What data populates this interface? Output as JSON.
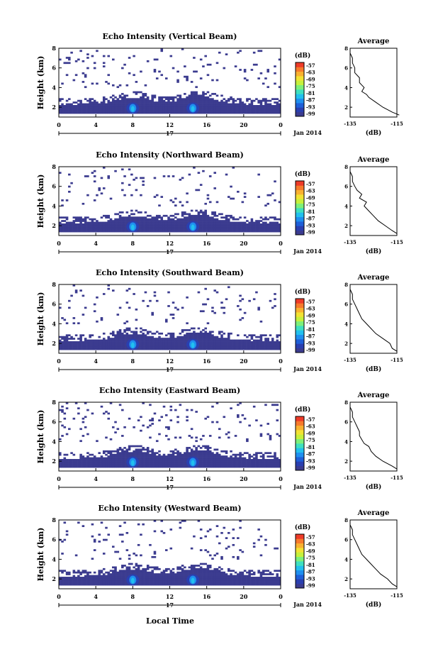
{
  "page": {
    "xlabel_bottom": "Local Time",
    "date_label": "Jan 2014",
    "day_label": "17"
  },
  "colorbar": {
    "unit": "(dB)",
    "ticks": [
      "-57",
      "-63",
      "-69",
      "-75",
      "-81",
      "-87",
      "-93",
      "-99"
    ],
    "colors": [
      "#3b3b8f",
      "#2a3fb0",
      "#1e5fd8",
      "#1f8fef",
      "#22c0ee",
      "#3ee0c0",
      "#7df07a",
      "#c6f03c",
      "#f2e233",
      "#f9b130",
      "#f77a2c",
      "#ee3b28"
    ]
  },
  "chart_data": [
    {
      "type": "heatmap",
      "title": "Echo Intensity (Vertical Beam)",
      "xlabel": "",
      "ylabel": "Height (km)",
      "xlim": [
        0,
        24
      ],
      "ylim": [
        1,
        8
      ],
      "xticks": [
        "0",
        "4",
        "8",
        "12",
        "16",
        "20",
        "0"
      ],
      "yticks": [
        "2",
        "4",
        "6",
        "8"
      ],
      "zlim": [
        -99,
        -57
      ],
      "unit": "dB",
      "profile": {
        "type": "line",
        "title": "Average",
        "xlabel": "(dB)",
        "xlim": [
          -135,
          -115
        ],
        "ylim": [
          1,
          8
        ],
        "xticks": [
          "-135",
          "-115"
        ],
        "yticks": [
          "2",
          "4",
          "6",
          "8"
        ],
        "heights": [
          1.2,
          1.5,
          2.0,
          2.5,
          3.0,
          3.3,
          3.6,
          4.0,
          4.5,
          5.0,
          5.5,
          6.0,
          6.5,
          7.0,
          7.5,
          7.9
        ],
        "values": [
          -114,
          -117,
          -121,
          -124,
          -127,
          -128,
          -130,
          -129,
          -131,
          -131,
          -133,
          -133,
          -134,
          -134,
          -135,
          -135
        ]
      }
    },
    {
      "type": "heatmap",
      "title": "Echo Intensity (Northward Beam)",
      "xlabel": "",
      "ylabel": "Height (km)",
      "xlim": [
        0,
        24
      ],
      "ylim": [
        1,
        8
      ],
      "xticks": [
        "0",
        "4",
        "8",
        "12",
        "16",
        "20",
        "0"
      ],
      "yticks": [
        "2",
        "4",
        "6",
        "8"
      ],
      "zlim": [
        -99,
        -57
      ],
      "unit": "dB",
      "profile": {
        "type": "line",
        "title": "Average",
        "xlabel": "(dB)",
        "xlim": [
          -135,
          -115
        ],
        "ylim": [
          1,
          8
        ],
        "xticks": [
          "-135",
          "-115"
        ],
        "yticks": [
          "2",
          "4",
          "6",
          "8"
        ],
        "heights": [
          1.2,
          1.5,
          2.0,
          2.5,
          3.0,
          3.5,
          4.0,
          4.4,
          4.8,
          5.2,
          5.6,
          6.0,
          6.5,
          7.0,
          7.5,
          7.9
        ],
        "values": [
          -115,
          -117,
          -120,
          -123,
          -125,
          -127,
          -129,
          -128,
          -131,
          -130,
          -132,
          -133,
          -134,
          -134,
          -135,
          -135
        ]
      }
    },
    {
      "type": "heatmap",
      "title": "Echo Intensity (Southward Beam)",
      "xlabel": "",
      "ylabel": "Height (km)",
      "xlim": [
        0,
        24
      ],
      "ylim": [
        1,
        8
      ],
      "xticks": [
        "0",
        "4",
        "8",
        "12",
        "16",
        "20",
        "0"
      ],
      "yticks": [
        "2",
        "4",
        "6",
        "8"
      ],
      "zlim": [
        -99,
        -57
      ],
      "unit": "dB",
      "profile": {
        "type": "line",
        "title": "Average",
        "xlabel": "(dB)",
        "xlim": [
          -135,
          -115
        ],
        "ylim": [
          1,
          8
        ],
        "xticks": [
          "-135",
          "-115"
        ],
        "yticks": [
          "2",
          "4",
          "6",
          "8"
        ],
        "heights": [
          1.2,
          1.5,
          2.0,
          2.5,
          3.0,
          3.5,
          4.0,
          4.5,
          5.0,
          5.5,
          6.0,
          6.5,
          7.0,
          7.5,
          7.9
        ],
        "values": [
          -115,
          -117,
          -118,
          -121,
          -124,
          -126,
          -128,
          -130,
          -131,
          -132,
          -133,
          -134,
          -134,
          -135,
          -135
        ]
      }
    },
    {
      "type": "heatmap",
      "title": "Echo Intensity (Eastward Beam)",
      "xlabel": "",
      "ylabel": "Height (km)",
      "xlim": [
        0,
        24
      ],
      "ylim": [
        1,
        8
      ],
      "xticks": [
        "0",
        "4",
        "8",
        "12",
        "16",
        "20",
        "0"
      ],
      "yticks": [
        "2",
        "4",
        "6",
        "8"
      ],
      "zlim": [
        -99,
        -57
      ],
      "unit": "dB",
      "profile": {
        "type": "line",
        "title": "Average",
        "xlabel": "(dB)",
        "xlim": [
          -135,
          -115
        ],
        "ylim": [
          1,
          8
        ],
        "xticks": [
          "-135",
          "-115"
        ],
        "yticks": [
          "2",
          "4",
          "6",
          "8"
        ],
        "heights": [
          1.2,
          1.5,
          2.0,
          2.5,
          3.0,
          3.5,
          3.8,
          4.2,
          4.6,
          5.0,
          5.5,
          6.0,
          6.5,
          7.0,
          7.5,
          7.9
        ],
        "values": [
          -115,
          -117,
          -121,
          -124,
          -126,
          -127,
          -129,
          -130,
          -131,
          -131,
          -132,
          -133,
          -134,
          -134,
          -135,
          -135
        ]
      }
    },
    {
      "type": "heatmap",
      "title": "Echo Intensity (Westward Beam)",
      "xlabel": "Local Time",
      "ylabel": "Height (km)",
      "xlim": [
        0,
        24
      ],
      "ylim": [
        1,
        8
      ],
      "xticks": [
        "0",
        "4",
        "8",
        "12",
        "16",
        "20",
        "0"
      ],
      "yticks": [
        "2",
        "4",
        "6",
        "8"
      ],
      "zlim": [
        -99,
        -57
      ],
      "unit": "dB",
      "profile": {
        "type": "line",
        "title": "Average",
        "xlabel": "(dB)",
        "xlim": [
          -135,
          -115
        ],
        "ylim": [
          1,
          8
        ],
        "xticks": [
          "-135",
          "-115"
        ],
        "yticks": [
          "2",
          "4",
          "6",
          "8"
        ],
        "heights": [
          1.2,
          1.5,
          2.0,
          2.5,
          3.0,
          3.5,
          4.0,
          4.5,
          5.0,
          5.5,
          6.0,
          6.5,
          7.0,
          7.5,
          7.9
        ],
        "values": [
          -115,
          -117,
          -119,
          -122,
          -124,
          -126,
          -128,
          -130,
          -131,
          -132,
          -133,
          -134,
          -134,
          -135,
          -135
        ]
      }
    }
  ]
}
